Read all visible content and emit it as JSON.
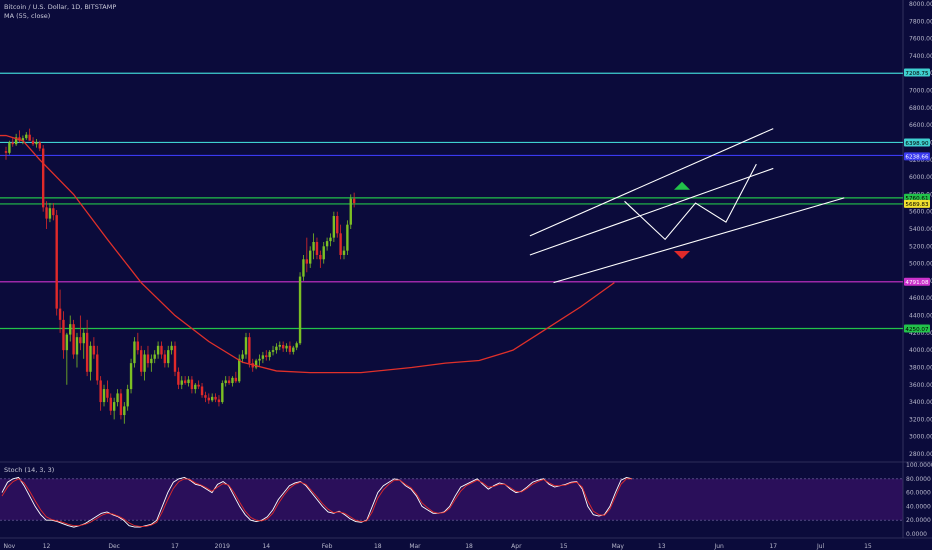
{
  "header": {
    "symbol_title": "Bitcoin / U.S. Dollar, 1D, BITSTAMP",
    "ma_label": "MA (55, close)",
    "stoch_label": "Stoch (14, 3, 3)"
  },
  "colors": {
    "background": "#0b0b3b",
    "stoch_background": "#2a0f5a",
    "candle_up": "#7cc024",
    "candle_down": "#e02a2a",
    "ma_line": "#e0302a",
    "channel_lines": "#ffffff",
    "level_cyan": "#3fd0d0",
    "level_blue": "#3a3af0",
    "level_green": "#22c24a",
    "level_magenta": "#cc33cc"
  },
  "chart_data": [
    {
      "type": "candlestick",
      "title": "Bitcoin / U.S. Dollar, 1D, BITSTAMP",
      "ylim": [
        2800,
        8000
      ],
      "y_ticks": [
        "8000.00",
        "7800.00",
        "7600.00",
        "7400.00",
        "7200.00",
        "7000.00",
        "6800.00",
        "6600.00",
        "6400.00",
        "6200.00",
        "6000.00",
        "5800.00",
        "5600.00",
        "5400.00",
        "5200.00",
        "5000.00",
        "4800.00",
        "4600.00",
        "4400.00",
        "4200.00",
        "4000.00",
        "3800.00",
        "3600.00",
        "3400.00",
        "3200.00",
        "3000.00",
        "2800.00"
      ],
      "x_ticks": [
        "Nov",
        "12",
        "Dec",
        "17",
        "2019",
        "14",
        "Feb",
        "18",
        "Mar",
        "18",
        "Apr",
        "15",
        "May",
        "13",
        "Jun",
        "17",
        "Jul",
        "15"
      ],
      "grid": false,
      "horizontal_levels": [
        {
          "price": 7200,
          "color": "cyan"
        },
        {
          "price": 6400,
          "color": "cyan"
        },
        {
          "price": 6250,
          "color": "blue"
        },
        {
          "price": 5760,
          "color": "green"
        },
        {
          "price": 5689.83,
          "color": "green"
        },
        {
          "price": 4790,
          "color": "magenta"
        },
        {
          "price": 4250,
          "color": "green"
        }
      ],
      "price_labels": [
        {
          "text": "7208.75",
          "price": 7208.75,
          "color": "cyan"
        },
        {
          "text": "6398.90",
          "price": 6398.9,
          "color": "cyan"
        },
        {
          "text": "6238.66",
          "price": 6238.66,
          "color": "blue"
        },
        {
          "text": "5760.61",
          "price": 5760.61,
          "color": "green"
        },
        {
          "text": "5689.83",
          "price": 5689.83,
          "color": "yellow"
        },
        {
          "text": "4791.08",
          "price": 4791.08,
          "color": "magenta"
        },
        {
          "text": "4250.07",
          "price": 4250.07,
          "color": "green"
        }
      ],
      "ma_55_close": [
        {
          "day": -20,
          "v": 6480
        },
        {
          "day": 0,
          "v": 6480
        },
        {
          "day": 5,
          "v": 6420
        },
        {
          "day": 10,
          "v": 6200
        },
        {
          "day": 20,
          "v": 5800
        },
        {
          "day": 30,
          "v": 5280
        },
        {
          "day": 40,
          "v": 4780
        },
        {
          "day": 50,
          "v": 4400
        },
        {
          "day": 60,
          "v": 4100
        },
        {
          "day": 70,
          "v": 3860
        },
        {
          "day": 80,
          "v": 3760
        },
        {
          "day": 90,
          "v": 3740
        },
        {
          "day": 105,
          "v": 3740
        },
        {
          "day": 120,
          "v": 3800
        },
        {
          "day": 130,
          "v": 3850
        },
        {
          "day": 140,
          "v": 3880
        },
        {
          "day": 150,
          "v": 4000
        },
        {
          "day": 160,
          "v": 4250
        },
        {
          "day": 170,
          "v": 4500
        },
        {
          "day": 180,
          "v": 4780
        }
      ],
      "candles_ohlc": [
        [
          6300,
          6350,
          6200,
          6280
        ],
        [
          6280,
          6420,
          6260,
          6400
        ],
        [
          6400,
          6450,
          6350,
          6380
        ],
        [
          6380,
          6500,
          6360,
          6460
        ],
        [
          6460,
          6540,
          6400,
          6420
        ],
        [
          6420,
          6480,
          6380,
          6450
        ],
        [
          6450,
          6520,
          6430,
          6490
        ],
        [
          6490,
          6560,
          6450,
          6420
        ],
        [
          6420,
          6460,
          6360,
          6380
        ],
        [
          6380,
          6440,
          6340,
          6400
        ],
        [
          6400,
          6420,
          6300,
          6330
        ],
        [
          6330,
          6370,
          5600,
          5650
        ],
        [
          5650,
          5720,
          5400,
          5520
        ],
        [
          5520,
          5700,
          5480,
          5640
        ],
        [
          5640,
          5700,
          5500,
          5560
        ],
        [
          5560,
          5620,
          4400,
          4480
        ],
        [
          4480,
          4700,
          4200,
          4350
        ],
        [
          4350,
          4450,
          3900,
          4000
        ],
        [
          4000,
          4200,
          3600,
          4180
        ],
        [
          4180,
          4400,
          4100,
          4300
        ],
        [
          4300,
          4350,
          3900,
          3950
        ],
        [
          3950,
          4200,
          3800,
          4150
        ],
        [
          4150,
          4400,
          4000,
          4080
        ],
        [
          4080,
          4250,
          3900,
          4200
        ],
        [
          4200,
          4350,
          3700,
          3750
        ],
        [
          3750,
          4100,
          3650,
          4050
        ],
        [
          4050,
          4150,
          3900,
          3950
        ],
        [
          3950,
          4050,
          3600,
          3650
        ],
        [
          3650,
          3700,
          3300,
          3400
        ],
        [
          3400,
          3600,
          3350,
          3550
        ],
        [
          3550,
          3650,
          3400,
          3450
        ],
        [
          3450,
          3500,
          3250,
          3300
        ],
        [
          3300,
          3450,
          3200,
          3400
        ],
        [
          3400,
          3550,
          3350,
          3500
        ],
        [
          3500,
          3550,
          3200,
          3250
        ],
        [
          3250,
          3400,
          3150,
          3350
        ],
        [
          3350,
          3600,
          3300,
          3550
        ],
        [
          3550,
          3900,
          3500,
          3850
        ],
        [
          3850,
          4150,
          3800,
          4100
        ],
        [
          4100,
          4200,
          3950,
          4000
        ],
        [
          4000,
          4050,
          3700,
          3750
        ],
        [
          3750,
          4000,
          3650,
          3950
        ],
        [
          3950,
          4050,
          3800,
          3850
        ],
        [
          3850,
          3950,
          3750,
          3900
        ],
        [
          3900,
          4000,
          3850,
          3950
        ],
        [
          3950,
          4100,
          3900,
          4050
        ],
        [
          4050,
          4100,
          3900,
          3950
        ],
        [
          3950,
          4000,
          3800,
          3850
        ],
        [
          3850,
          4050,
          3800,
          4000
        ],
        [
          4000,
          4100,
          3950,
          4050
        ],
        [
          4050,
          4100,
          3700,
          3750
        ],
        [
          3750,
          3800,
          3550,
          3600
        ],
        [
          3600,
          3700,
          3550,
          3650
        ],
        [
          3650,
          3700,
          3600,
          3620
        ],
        [
          3620,
          3700,
          3580,
          3660
        ],
        [
          3660,
          3700,
          3500,
          3550
        ],
        [
          3550,
          3620,
          3500,
          3600
        ],
        [
          3600,
          3650,
          3550,
          3580
        ],
        [
          3580,
          3620,
          3450,
          3480
        ],
        [
          3480,
          3520,
          3400,
          3450
        ],
        [
          3450,
          3500,
          3380,
          3420
        ],
        [
          3420,
          3500,
          3400,
          3460
        ],
        [
          3460,
          3500,
          3400,
          3430
        ],
        [
          3430,
          3480,
          3350,
          3400
        ],
        [
          3400,
          3650,
          3380,
          3620
        ],
        [
          3620,
          3700,
          3580,
          3650
        ],
        [
          3650,
          3700,
          3600,
          3620
        ],
        [
          3620,
          3700,
          3580,
          3680
        ],
        [
          3680,
          3750,
          3620,
          3640
        ],
        [
          3640,
          3950,
          3620,
          3900
        ],
        [
          3900,
          4000,
          3850,
          3950
        ],
        [
          3950,
          4200,
          3900,
          4150
        ],
        [
          4150,
          4200,
          3800,
          3850
        ],
        [
          3850,
          3900,
          3750,
          3800
        ],
        [
          3800,
          3900,
          3780,
          3880
        ],
        [
          3880,
          3950,
          3820,
          3900
        ],
        [
          3900,
          3980,
          3850,
          3940
        ],
        [
          3940,
          4000,
          3880,
          3920
        ],
        [
          3920,
          4000,
          3880,
          3980
        ],
        [
          3980,
          4050,
          3940,
          4000
        ],
        [
          4000,
          4080,
          3960,
          4040
        ],
        [
          4040,
          4100,
          4000,
          4060
        ],
        [
          4060,
          4100,
          3980,
          4020
        ],
        [
          4020,
          4080,
          3980,
          4050
        ],
        [
          4050,
          4100,
          3950,
          3980
        ],
        [
          3980,
          4050,
          3950,
          4030
        ],
        [
          4030,
          4100,
          4000,
          4080
        ],
        [
          4080,
          4900,
          4060,
          4850
        ],
        [
          4850,
          5100,
          4800,
          5050
        ],
        [
          5050,
          5300,
          4900,
          5000
        ],
        [
          5000,
          5200,
          4950,
          5150
        ],
        [
          5150,
          5350,
          5050,
          5250
        ],
        [
          5250,
          5300,
          5050,
          5100
        ],
        [
          5100,
          5150,
          4950,
          5050
        ],
        [
          5050,
          5250,
          5000,
          5200
        ],
        [
          5200,
          5300,
          5150,
          5260
        ],
        [
          5260,
          5350,
          5200,
          5300
        ],
        [
          5300,
          5600,
          5250,
          5550
        ],
        [
          5550,
          5600,
          5300,
          5350
        ],
        [
          5350,
          5450,
          5050,
          5100
        ],
        [
          5100,
          5200,
          5050,
          5150
        ],
        [
          5150,
          5500,
          5100,
          5450
        ],
        [
          5450,
          5800,
          5400,
          5750
        ],
        [
          5750,
          5820,
          5650,
          5700
        ]
      ],
      "projection_path_prices": [
        {
          "day": 183,
          "v": 5720
        },
        {
          "day": 195,
          "v": 5280
        },
        {
          "day": 204,
          "v": 5700
        },
        {
          "day": 213,
          "v": 5480
        },
        {
          "day": 222,
          "v": 6150
        }
      ],
      "channel_upper": [
        {
          "day": 155,
          "v": 5320
        },
        {
          "day": 227,
          "v": 6560
        }
      ],
      "channel_lower": [
        {
          "day": 162,
          "v": 4780
        },
        {
          "day": 248,
          "v": 5760
        }
      ],
      "channel_upper_extension": [
        {
          "day": 155,
          "v": 5100
        },
        {
          "day": 227,
          "v": 6100
        }
      ],
      "markers": [
        {
          "shape": "up-triangle",
          "day": 200,
          "v": 5900,
          "color": "green"
        },
        {
          "shape": "down-triangle",
          "day": 200,
          "v": 5100,
          "color": "red"
        }
      ]
    },
    {
      "type": "line",
      "title": "Stoch (14, 3, 3)",
      "ylim": [
        0,
        100
      ],
      "y_ticks": [
        "100.0000",
        "80.0000",
        "60.0000",
        "40.0000",
        "20.0000",
        "0.0000"
      ],
      "bands": [
        20,
        80
      ],
      "series": [
        {
          "color": "white",
          "values": [
            60,
            75,
            80,
            82,
            70,
            55,
            40,
            28,
            20,
            20,
            18,
            15,
            12,
            10,
            12,
            15,
            20,
            25,
            30,
            32,
            28,
            25,
            20,
            12,
            10,
            10,
            12,
            14,
            20,
            40,
            60,
            75,
            80,
            82,
            78,
            72,
            70,
            65,
            60,
            72,
            76,
            70,
            55,
            40,
            28,
            20,
            18,
            20,
            25,
            35,
            50,
            60,
            70,
            74,
            76,
            70,
            60,
            50,
            40,
            32,
            30,
            33,
            28,
            22,
            18,
            17,
            20,
            40,
            60,
            70,
            75,
            80,
            78,
            70,
            65,
            55,
            40,
            35,
            30,
            30,
            32,
            40,
            55,
            68,
            72,
            76,
            80,
            72,
            65,
            70,
            74,
            72,
            65,
            60,
            62,
            68,
            75,
            78,
            80,
            72,
            68,
            70,
            72,
            75,
            76,
            65,
            40,
            28,
            26,
            28,
            40,
            60,
            78,
            82,
            80
          ]
        },
        {
          "color": "red",
          "values": [
            55,
            68,
            76,
            80,
            74,
            62,
            48,
            35,
            25,
            21,
            19,
            17,
            14,
            12,
            12,
            14,
            17,
            22,
            27,
            30,
            29,
            26,
            22,
            16,
            12,
            11,
            11,
            13,
            17,
            32,
            50,
            66,
            76,
            80,
            79,
            74,
            71,
            67,
            62,
            68,
            73,
            71,
            60,
            46,
            33,
            24,
            20,
            19,
            22,
            30,
            44,
            56,
            66,
            72,
            75,
            72,
            63,
            54,
            44,
            36,
            31,
            32,
            30,
            25,
            20,
            18,
            19,
            32,
            52,
            64,
            72,
            78,
            78,
            72,
            67,
            58,
            45,
            38,
            32,
            30,
            31,
            37,
            50,
            62,
            70,
            74,
            78,
            74,
            68,
            69,
            72,
            72,
            67,
            62,
            61,
            66,
            72,
            76,
            79,
            74,
            70,
            70,
            71,
            74,
            75,
            68,
            48,
            33,
            28,
            27,
            36,
            54,
            72,
            80,
            80
          ]
        }
      ]
    }
  ]
}
